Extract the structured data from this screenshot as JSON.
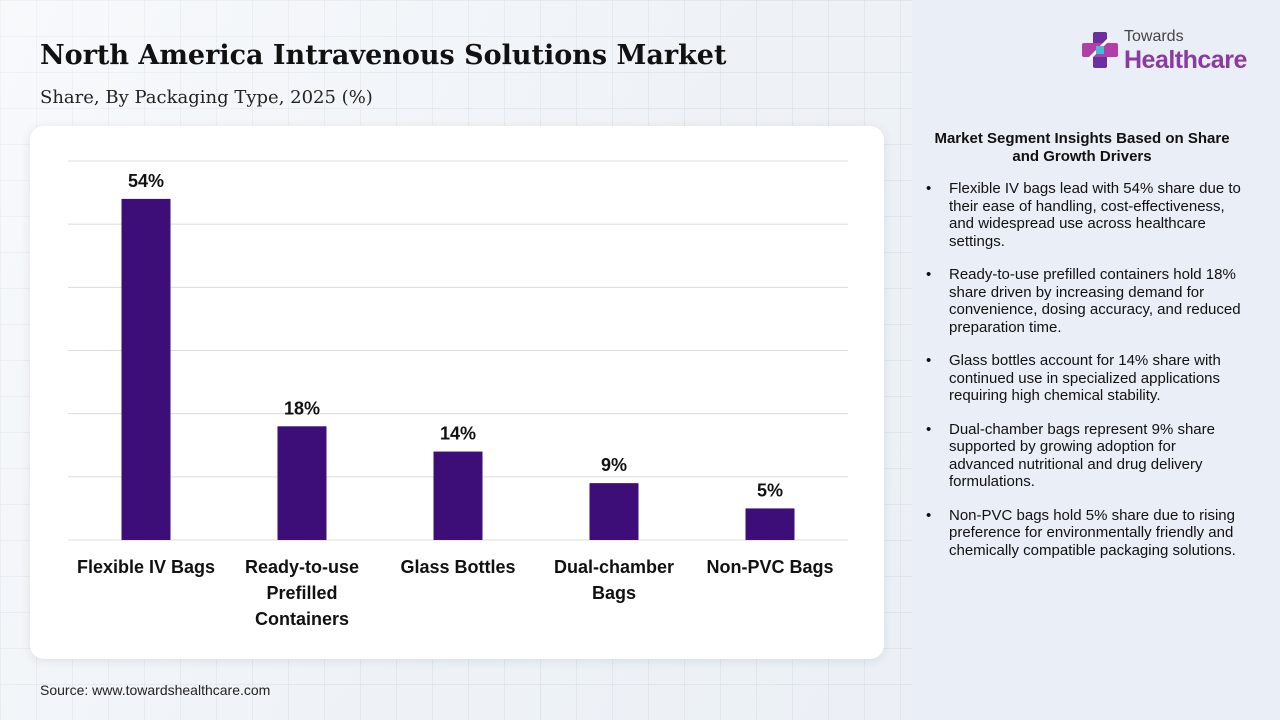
{
  "header": {
    "title": "North America Intravenous Solutions Market",
    "subtitle": "Share, By Packaging Type, 2025 (%)"
  },
  "logo": {
    "top": "Towards",
    "bottom": "Healthcare"
  },
  "source": "Source: www.towardshealthcare.com",
  "insights": {
    "title": "Market Segment Insights Based on Share and Growth Drivers",
    "items": [
      "Flexible IV bags lead with 54% share due to their ease of handling, cost-effectiveness, and widespread use across healthcare settings.",
      "Ready-to-use prefilled containers hold 18% share driven by increasing demand for convenience, dosing accuracy, and reduced preparation time.",
      "Glass bottles account for 14% share with continued use in specialized applications requiring high chemical stability.",
      "Dual-chamber bags represent 9% share supported by growing adoption for advanced nutritional and drug delivery formulations.",
      "Non-PVC bags hold 5% share due to rising preference for environmentally friendly and chemically compatible packaging solutions."
    ]
  },
  "colors": {
    "bar": "#3d0e78",
    "grid": "#dcdcdc",
    "logo_text": "#8a3aa3"
  },
  "chart_data": {
    "type": "bar",
    "categories": [
      "Flexible IV Bags",
      "Ready-to-use Prefilled Containers",
      "Glass Bottles",
      "Dual-chamber Bags",
      "Non-PVC Bags"
    ],
    "category_lines": [
      [
        "Flexible IV Bags"
      ],
      [
        "Ready-to-use",
        "Prefilled",
        "Containers"
      ],
      [
        "Glass Bottles"
      ],
      [
        "Dual-chamber",
        "Bags"
      ],
      [
        "Non-PVC Bags"
      ]
    ],
    "values": [
      54,
      18,
      14,
      9,
      5
    ],
    "data_labels": [
      "54%",
      "18%",
      "14%",
      "9%",
      "5%"
    ],
    "title": "North America Intravenous Solutions Market",
    "xlabel": "",
    "ylabel": "",
    "ylim": [
      0,
      60
    ],
    "grid": true,
    "legend": "none"
  }
}
